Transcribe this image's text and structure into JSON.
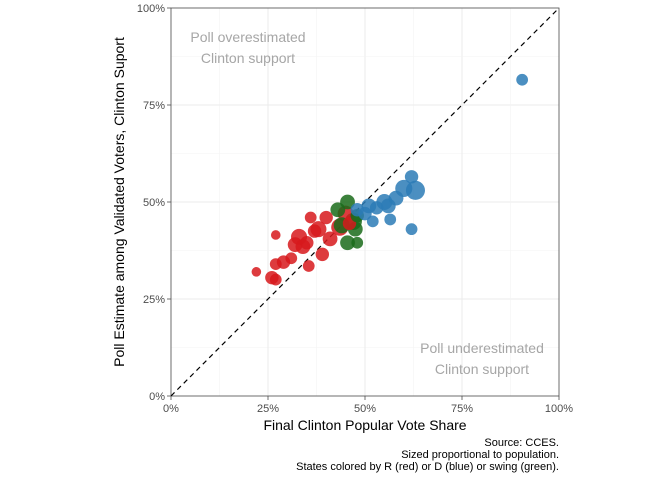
{
  "chart_data": {
    "type": "scatter",
    "xlabel": "Final Clinton Popular Vote Share",
    "ylabel": "Poll Estimate among Validated Voters, Clinton Suport",
    "xlim": [
      0,
      1
    ],
    "ylim": [
      0,
      1
    ],
    "x_ticks": [
      "0%",
      "25%",
      "50%",
      "75%",
      "100%"
    ],
    "y_ticks": [
      "0%",
      "25%",
      "50%",
      "75%",
      "100%"
    ],
    "grid": true,
    "reference_line": "y = x, dashed",
    "annotations": {
      "top_left": [
        "Poll overestimated",
        "Clinton support"
      ],
      "bottom_right": [
        "Poll underestimated",
        "Clinton support"
      ]
    },
    "caption": [
      "Source: CCES.",
      "Sized proportional to population.",
      "States colored by R (red) or D (blue) or swing (green)."
    ],
    "colors": {
      "R": "#d7191c",
      "D": "#2c7bb6",
      "swing": "#1a6b1a"
    },
    "series": [
      {
        "group": "R",
        "points": [
          {
            "x": 0.22,
            "y": 0.32,
            "size": 1
          },
          {
            "x": 0.26,
            "y": 0.305,
            "size": 3
          },
          {
            "x": 0.27,
            "y": 0.3,
            "size": 2
          },
          {
            "x": 0.27,
            "y": 0.34,
            "size": 2
          },
          {
            "x": 0.29,
            "y": 0.345,
            "size": 3
          },
          {
            "x": 0.27,
            "y": 0.415,
            "size": 1
          },
          {
            "x": 0.31,
            "y": 0.355,
            "size": 2
          },
          {
            "x": 0.32,
            "y": 0.39,
            "size": 4
          },
          {
            "x": 0.33,
            "y": 0.41,
            "size": 5
          },
          {
            "x": 0.34,
            "y": 0.385,
            "size": 4
          },
          {
            "x": 0.35,
            "y": 0.395,
            "size": 3
          },
          {
            "x": 0.355,
            "y": 0.335,
            "size": 2
          },
          {
            "x": 0.36,
            "y": 0.46,
            "size": 2
          },
          {
            "x": 0.37,
            "y": 0.425,
            "size": 3
          },
          {
            "x": 0.38,
            "y": 0.43,
            "size": 5
          },
          {
            "x": 0.39,
            "y": 0.365,
            "size": 3
          },
          {
            "x": 0.4,
            "y": 0.46,
            "size": 3
          },
          {
            "x": 0.41,
            "y": 0.405,
            "size": 4
          },
          {
            "x": 0.435,
            "y": 0.435,
            "size": 6
          },
          {
            "x": 0.45,
            "y": 0.47,
            "size": 5
          },
          {
            "x": 0.46,
            "y": 0.445,
            "size": 3
          }
        ]
      },
      {
        "group": "swing",
        "points": [
          {
            "x": 0.43,
            "y": 0.48,
            "size": 4
          },
          {
            "x": 0.44,
            "y": 0.44,
            "size": 5
          },
          {
            "x": 0.455,
            "y": 0.5,
            "size": 4
          },
          {
            "x": 0.455,
            "y": 0.395,
            "size": 4
          },
          {
            "x": 0.47,
            "y": 0.45,
            "size": 6
          },
          {
            "x": 0.475,
            "y": 0.43,
            "size": 4
          },
          {
            "x": 0.48,
            "y": 0.395,
            "size": 2
          },
          {
            "x": 0.48,
            "y": 0.465,
            "size": 3
          }
        ]
      },
      {
        "group": "D",
        "points": [
          {
            "x": 0.48,
            "y": 0.48,
            "size": 3
          },
          {
            "x": 0.5,
            "y": 0.47,
            "size": 3
          },
          {
            "x": 0.51,
            "y": 0.49,
            "size": 4
          },
          {
            "x": 0.52,
            "y": 0.45,
            "size": 2
          },
          {
            "x": 0.53,
            "y": 0.485,
            "size": 3
          },
          {
            "x": 0.55,
            "y": 0.5,
            "size": 5
          },
          {
            "x": 0.56,
            "y": 0.49,
            "size": 4
          },
          {
            "x": 0.565,
            "y": 0.455,
            "size": 2
          },
          {
            "x": 0.58,
            "y": 0.51,
            "size": 4
          },
          {
            "x": 0.6,
            "y": 0.535,
            "size": 6
          },
          {
            "x": 0.62,
            "y": 0.565,
            "size": 3
          },
          {
            "x": 0.62,
            "y": 0.43,
            "size": 2
          },
          {
            "x": 0.63,
            "y": 0.53,
            "size": 8
          },
          {
            "x": 0.905,
            "y": 0.815,
            "size": 2
          }
        ]
      }
    ]
  }
}
